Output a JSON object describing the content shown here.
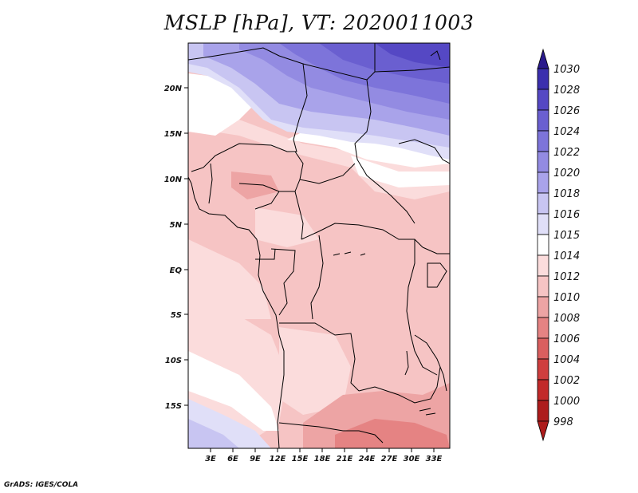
{
  "title": "MSLP [hPa], VT: 2020011003",
  "credit": "GrADS: IGES/COLA",
  "map": {
    "lon_labels": [
      "3E",
      "6E",
      "9E",
      "12E",
      "15E",
      "18E",
      "21E",
      "24E",
      "27E",
      "30E",
      "33E"
    ],
    "lat_labels": [
      "20N",
      "15N",
      "10N",
      "5N",
      "EQ",
      "5S",
      "10S",
      "15S"
    ]
  },
  "colorbar": {
    "levels": [
      "1030",
      "1028",
      "1026",
      "1024",
      "1022",
      "1020",
      "1018",
      "1016",
      "1015",
      "1014",
      "1012",
      "1010",
      "1008",
      "1006",
      "1004",
      "1002",
      "1000",
      "998"
    ],
    "colors": [
      "#2a1a8c",
      "#3b2fae",
      "#5548c4",
      "#6a5fd0",
      "#7d74da",
      "#938be2",
      "#a9a3ea",
      "#c8c5f2",
      "#e0dff8",
      "#ffffff",
      "#fbdcdc",
      "#f6c4c4",
      "#eda4a4",
      "#e58383",
      "#da5f5f",
      "#cf3e3e",
      "#c22a2a",
      "#ad1c1c"
    ]
  },
  "colors": {
    "land_lowpressure": "#f6c4c4",
    "high_pressure": "#7d74da",
    "neutral": "#ffffff"
  }
}
